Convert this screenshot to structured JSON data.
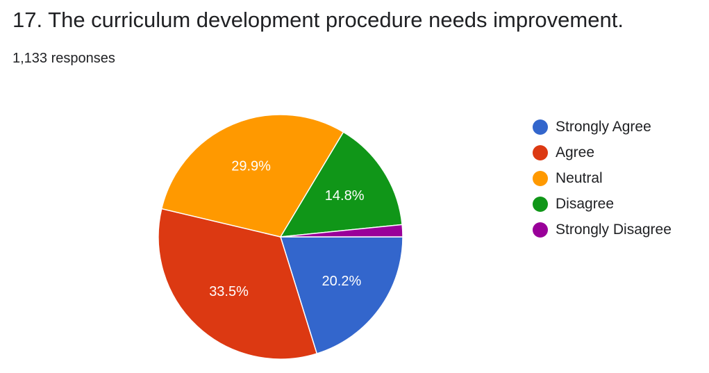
{
  "question": {
    "title": "17. The curriculum development procedure needs improvement.",
    "responses": "1,133 responses"
  },
  "chart_data": {
    "type": "pie",
    "categories": [
      "Strongly Agree",
      "Agree",
      "Neutral",
      "Disagree",
      "Strongly Disagree"
    ],
    "values": [
      20.2,
      33.5,
      29.9,
      14.8,
      1.6
    ],
    "data_labels": [
      "20.2%",
      "33.5%",
      "29.9%",
      "14.8%",
      ""
    ],
    "colors": [
      "#3366cc",
      "#dc3912",
      "#ff9900",
      "#109618",
      "#990099"
    ],
    "legend_position": "right"
  }
}
